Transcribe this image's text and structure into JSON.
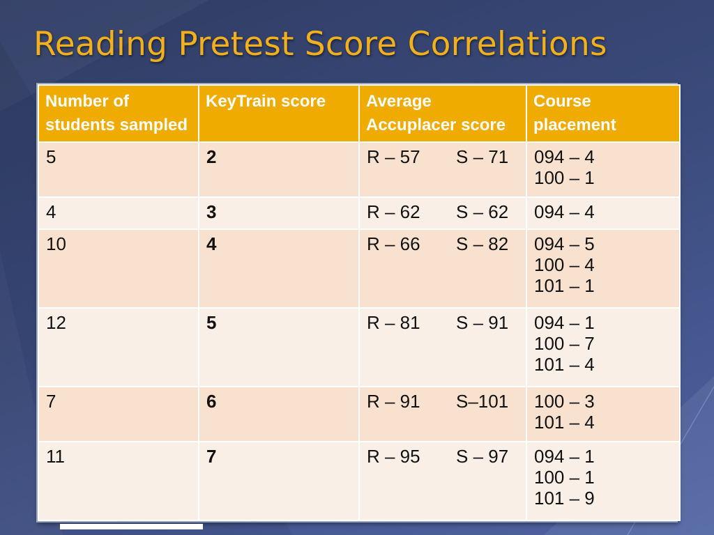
{
  "title": "Reading Pretest Score Correlations",
  "colors": {
    "title": "#f2b01c",
    "header_bg": "#f0ab00",
    "row_odd": "#f8e2cf",
    "row_even": "#faefe6"
  },
  "table": {
    "headers": [
      "Number of students sampled",
      "KeyTrain score",
      "Average Accuplacer score",
      "Course placement"
    ],
    "rows": [
      {
        "students": "5",
        "keytrain": "2",
        "accuplacer_r": "R – 57",
        "accuplacer_s": "S – 71",
        "placement": [
          "094 – 4",
          "100 – 1"
        ]
      },
      {
        "students": "4",
        "keytrain": "3",
        "accuplacer_r": "R – 62",
        "accuplacer_s": "S – 62",
        "placement": [
          "094 – 4"
        ]
      },
      {
        "students": "10",
        "keytrain": "4",
        "accuplacer_r": "R – 66",
        "accuplacer_s": "S – 82",
        "placement": [
          "094 – 5",
          "100 – 4",
          "101 – 1"
        ]
      },
      {
        "students": "12",
        "keytrain": "5",
        "accuplacer_r": "R – 81",
        "accuplacer_s": "S – 91",
        "placement": [
          "094 – 1",
          "100 – 7",
          "101 – 4"
        ]
      },
      {
        "students": "7",
        "keytrain": "6",
        "accuplacer_r": "R – 91",
        "accuplacer_s": "S–101",
        "placement": [
          "100 – 3",
          "101 – 4"
        ]
      },
      {
        "students": "11",
        "keytrain": "7",
        "accuplacer_r": "R – 95",
        "accuplacer_s": "S – 97",
        "placement": [
          "094 – 1",
          "100 – 1",
          "101 – 9"
        ]
      }
    ]
  }
}
